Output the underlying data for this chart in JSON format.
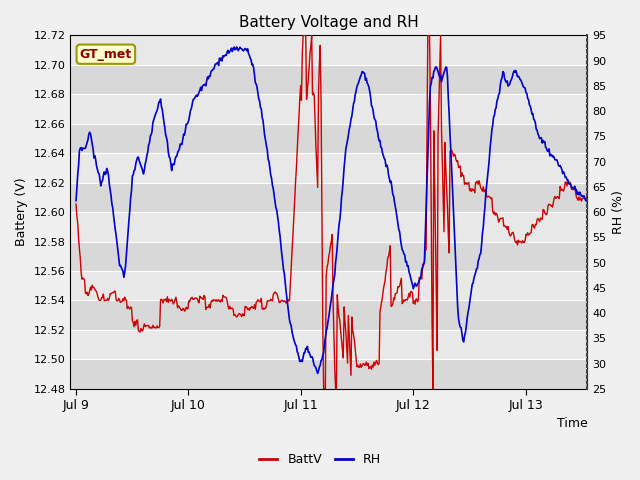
{
  "title": "Battery Voltage and RH",
  "xlabel": "Time",
  "ylabel_left": "Battery (V)",
  "ylabel_right": "RH (%)",
  "annotation_text": "GT_met",
  "ylim_left": [
    12.48,
    12.72
  ],
  "ylim_right": [
    25,
    95
  ],
  "yticks_left": [
    12.48,
    12.5,
    12.52,
    12.54,
    12.56,
    12.58,
    12.6,
    12.62,
    12.64,
    12.66,
    12.68,
    12.7,
    12.72
  ],
  "yticks_right": [
    25,
    30,
    35,
    40,
    45,
    50,
    55,
    60,
    65,
    70,
    75,
    80,
    85,
    90,
    95
  ],
  "color_battv": "#cc0000",
  "color_rh": "#0000cc",
  "legend_labels": [
    "BattV",
    "RH"
  ],
  "bg_color": "#e8e8e8",
  "grid_color": "#ffffff",
  "xtick_labels": [
    "Jul 9",
    "Jul 10",
    "Jul 11",
    "Jul 12",
    "Jul 13"
  ],
  "fig_bg": "#f0f0f0",
  "annotation_fg": "#8b0000",
  "annotation_bg": "#ffffcc",
  "annotation_edge": "#999900"
}
